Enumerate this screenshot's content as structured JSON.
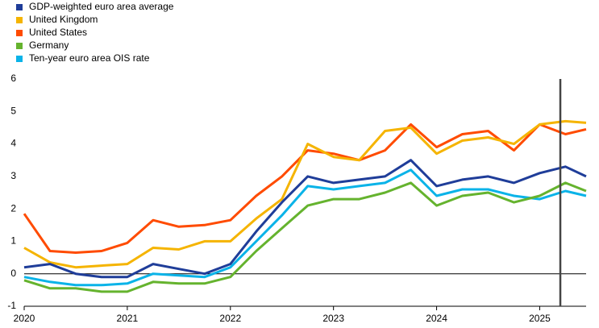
{
  "chart_data": {
    "type": "line",
    "x": [
      2020,
      2020.25,
      2020.5,
      2020.75,
      2021,
      2021.25,
      2021.5,
      2021.75,
      2022,
      2022.25,
      2022.5,
      2022.75,
      2023,
      2023.25,
      2023.5,
      2023.75,
      2024,
      2024.25,
      2024.5,
      2024.75,
      2025,
      2025.25,
      2025.45
    ],
    "series": [
      {
        "name": "GDP-weighted euro area average",
        "color": "#1f3d99",
        "values": [
          0.2,
          0.3,
          0.0,
          -0.1,
          -0.1,
          0.3,
          0.15,
          0.0,
          0.3,
          1.3,
          2.2,
          3.0,
          2.8,
          2.9,
          3.0,
          3.5,
          2.7,
          2.9,
          3.0,
          2.8,
          3.1,
          3.3,
          3.0
        ]
      },
      {
        "name": "United Kingdom",
        "color": "#f5b400",
        "values": [
          0.8,
          0.35,
          0.2,
          0.25,
          0.3,
          0.8,
          0.75,
          1.0,
          1.0,
          1.7,
          2.3,
          4.0,
          3.6,
          3.5,
          4.4,
          4.5,
          3.7,
          4.1,
          4.2,
          4.0,
          4.6,
          4.7,
          4.65
        ]
      },
      {
        "name": "United States",
        "color": "#ff4b00",
        "values": [
          1.85,
          0.7,
          0.65,
          0.7,
          0.95,
          1.65,
          1.45,
          1.5,
          1.65,
          2.4,
          3.0,
          3.8,
          3.7,
          3.5,
          3.8,
          4.6,
          3.9,
          4.3,
          4.4,
          3.8,
          4.6,
          4.3,
          4.45
        ]
      },
      {
        "name": "Germany",
        "color": "#65b32e",
        "values": [
          -0.2,
          -0.45,
          -0.45,
          -0.55,
          -0.55,
          -0.25,
          -0.3,
          -0.3,
          -0.1,
          0.7,
          1.4,
          2.1,
          2.3,
          2.3,
          2.5,
          2.8,
          2.1,
          2.4,
          2.5,
          2.2,
          2.4,
          2.8,
          2.55
        ]
      },
      {
        "name": "Ten-year euro area OIS rate",
        "color": "#0ab3e8",
        "values": [
          -0.1,
          -0.25,
          -0.35,
          -0.35,
          -0.3,
          0.0,
          -0.05,
          -0.1,
          0.2,
          1.0,
          1.8,
          2.7,
          2.6,
          2.7,
          2.8,
          3.2,
          2.4,
          2.6,
          2.6,
          2.4,
          2.3,
          2.55,
          2.4
        ]
      }
    ],
    "xlim": [
      2020,
      2025.45
    ],
    "xticks": [
      2020,
      2021,
      2022,
      2023,
      2024,
      2025
    ],
    "ylim": [
      -1,
      6
    ],
    "yticks": [
      -1,
      0,
      1,
      2,
      3,
      4,
      5,
      6
    ],
    "marker_x": 2025.2
  }
}
